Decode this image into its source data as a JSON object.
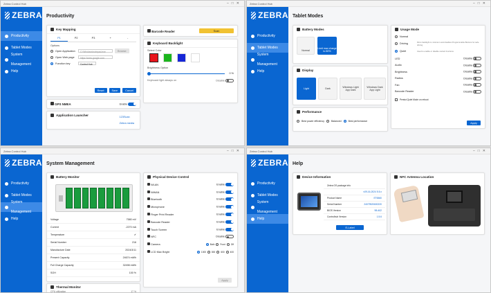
{
  "app": {
    "window_title": "Zebra Control Hub",
    "brand": "ZEBRA",
    "nav": [
      "Productivity",
      "Tablet Modes",
      "System Management",
      "Help"
    ]
  },
  "productivity": {
    "title": "Productivity",
    "key_mapping": {
      "title": "Key Mapping",
      "tabs": [
        "P1",
        "P2",
        "P3",
        "+",
        "-"
      ],
      "options_label": "Options",
      "open_application": "Open Application",
      "open_application_value": "C:\\Windows\\notepad.exe",
      "browse": "Browse",
      "open_web_page": "Open Web page",
      "open_web_page_placeholder": "https://www.google.com",
      "function_key": "Function key",
      "function_key_value": "Control Hub",
      "reset": "Reset",
      "save": "Save",
      "cancel": "Cancel"
    },
    "gps": {
      "title": "GPS NMEA",
      "state": "Enable"
    },
    "launcher": {
      "title": "Application Launcher",
      "apps": [
        "123Scan",
        "Zebra media"
      ]
    },
    "barcode": {
      "title": "Barcode Reader",
      "scan": "Scan"
    },
    "backlight": {
      "title": "Keyboard Backlight",
      "select_color": "Select Color",
      "colors": [
        "#e8141b",
        "#1bb51d",
        "#1626d6",
        "#ffffff"
      ],
      "brightness_label": "Brightness Option",
      "brightness_value": "0 %",
      "always_on_label": "Keyboard light always on",
      "always_on_state": "Disable"
    }
  },
  "tablet": {
    "title": "Tablet Modes",
    "battery": {
      "title": "Battery Modes",
      "tiles": [
        "Normal",
        "Limit max charge to 80%"
      ]
    },
    "display": {
      "title": "Display",
      "tiles": [
        "Light",
        "Dark",
        "Windows Light App Dark",
        "Windows Dark App Light"
      ]
    },
    "performance": {
      "title": "Performance",
      "options": [
        "Best power efficiency",
        "Balanced",
        "Best performance"
      ]
    },
    "usage": {
      "title": "Usage Mode",
      "modes": [
        {
          "label": "Normal",
          "desc": ""
        },
        {
          "label": "Driving",
          "desc": "Dims backlight to minimum and disables Programmable Buttons for safe driving"
        },
        {
          "label": "Quiet",
          "desc": "Used to enable or disable certain functions"
        }
      ],
      "items": [
        {
          "label": "LED",
          "state": "Disable"
        },
        {
          "label": "Audio",
          "state": "Disable"
        },
        {
          "label": "Brightness",
          "state": "Disable"
        },
        {
          "label": "Radios",
          "state": "Disable"
        },
        {
          "label": "Fan",
          "state": "Disable"
        },
        {
          "label": "Barcode Reader",
          "state": "Disable"
        }
      ],
      "persist": "Persist Quiet Mode on reboot",
      "apply": "Apply"
    }
  },
  "system": {
    "title": "System Management",
    "battery": {
      "title": "Battery Monitor",
      "cells": 8,
      "rows": [
        {
          "k": "Voltage",
          "v": "7580 mV"
        },
        {
          "k": "Current",
          "v": "-2270 mA"
        },
        {
          "k": "Temperature",
          "v": "✔"
        },
        {
          "k": "Serial Number",
          "v": "216"
        },
        {
          "k": "Manufacture Date",
          "v": "2024/3/11"
        },
        {
          "k": "Present Capacity",
          "v": "24674 mWh"
        },
        {
          "k": "Full Charge Capacity",
          "v": "32498 mWh"
        },
        {
          "k": "SOH",
          "v": "100 %"
        }
      ]
    },
    "thermal": {
      "title": "Thermal Monitor",
      "row": "CPU utilization",
      "value": "17 %"
    },
    "physical": {
      "title": "Physical Device Control",
      "items": [
        {
          "label": "WLAN",
          "state": "Enable",
          "on": true
        },
        {
          "label": "WWAN",
          "state": "Enable",
          "on": true
        },
        {
          "label": "Bluetooth",
          "state": "Enable",
          "on": true
        },
        {
          "label": "Microphone",
          "state": "Enable",
          "on": true
        },
        {
          "label": "Finger Print Reader",
          "state": "Enable",
          "on": true
        },
        {
          "label": "Barcode Reader",
          "state": "Enable",
          "on": true
        },
        {
          "label": "Touch Screen",
          "state": "Enable",
          "on": true
        },
        {
          "label": "NFC",
          "state": "Disable",
          "on": false
        }
      ],
      "camera_label": "Camera",
      "camera_opts": [
        "Both",
        "Front",
        "Off"
      ],
      "lcd_label": "LCD Max Bright",
      "lcd_opts": [
        "1000",
        "800",
        "600",
        "400"
      ],
      "apply": "Apply"
    }
  },
  "help": {
    "title": "Help",
    "device": {
      "title": "Device Information",
      "rows": [
        {
          "k": "Zebra OS package info",
          "v": ""
        },
        {
          "k": "",
          "v": "v09-16-2024 5.5.x"
        },
        {
          "k": "Product Name",
          "v": "ET6560"
        },
        {
          "k": "Serial Number",
          "v": "24079520600220"
        },
        {
          "k": "BIOS Version",
          "v": "98.A02"
        },
        {
          "k": "Controlhub Version",
          "v": "1.5.6"
        }
      ],
      "elabel": "E-Label"
    },
    "nfc": {
      "title": "NFC Antenna Location"
    }
  }
}
